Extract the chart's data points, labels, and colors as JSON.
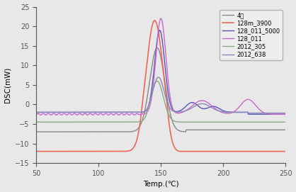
{
  "xlabel": "Temp.(℃)",
  "ylabel": "DSC(mW)",
  "xlim": [
    50,
    250
  ],
  "ylim": [
    -15,
    25
  ],
  "xticks": [
    50,
    100,
    150,
    200,
    250
  ],
  "yticks": [
    -15,
    -10,
    -5,
    0,
    5,
    10,
    15,
    20,
    25
  ],
  "legend": [
    "4관",
    "128m_3900",
    "128_011_5000",
    "128_011",
    "2012_305",
    "2012_638"
  ],
  "colors": {
    "4관": "#888888",
    "128m_3900": "#ee6655",
    "128_011_5000": "#5555bb",
    "128_011": "#cc66cc",
    "2012_305": "#88aa88",
    "2012_638": "#8888bb"
  },
  "linewidths": {
    "4관": 1.0,
    "128m_3900": 1.2,
    "128_011_5000": 1.0,
    "128_011": 1.0,
    "2012_305": 1.0,
    "2012_638": 1.0
  }
}
